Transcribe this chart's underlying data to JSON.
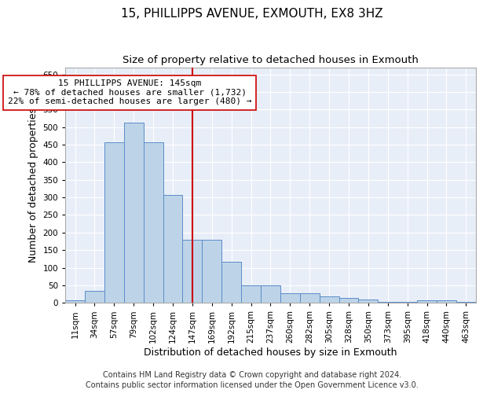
{
  "title": "15, PHILLIPPS AVENUE, EXMOUTH, EX8 3HZ",
  "subtitle": "Size of property relative to detached houses in Exmouth",
  "xlabel": "Distribution of detached houses by size in Exmouth",
  "ylabel": "Number of detached properties",
  "categories": [
    "11sqm",
    "34sqm",
    "57sqm",
    "79sqm",
    "102sqm",
    "124sqm",
    "147sqm",
    "169sqm",
    "192sqm",
    "215sqm",
    "237sqm",
    "260sqm",
    "282sqm",
    "305sqm",
    "328sqm",
    "350sqm",
    "373sqm",
    "395sqm",
    "418sqm",
    "440sqm",
    "463sqm"
  ],
  "values": [
    7,
    35,
    457,
    512,
    457,
    307,
    180,
    180,
    117,
    50,
    50,
    27,
    27,
    18,
    13,
    9,
    2,
    2,
    7,
    7,
    4
  ],
  "bar_color": "#bdd4e8",
  "bar_edge_color": "#5b8cc8",
  "vline_x_index": 6,
  "vline_color": "#cc0000",
  "annotation_line1": "15 PHILLIPPS AVENUE: 145sqm",
  "annotation_line2": "← 78% of detached houses are smaller (1,732)",
  "annotation_line3": "22% of semi-detached houses are larger (480) →",
  "annotation_box_color": "#ffffff",
  "annotation_box_edge_color": "#cc0000",
  "ylim": [
    0,
    670
  ],
  "yticks": [
    0,
    50,
    100,
    150,
    200,
    250,
    300,
    350,
    400,
    450,
    500,
    550,
    600,
    650
  ],
  "footer1": "Contains HM Land Registry data © Crown copyright and database right 2024.",
  "footer2": "Contains public sector information licensed under the Open Government Licence v3.0.",
  "title_fontsize": 11,
  "subtitle_fontsize": 9.5,
  "axis_label_fontsize": 9,
  "tick_fontsize": 7.5,
  "annotation_fontsize": 8,
  "footer_fontsize": 7,
  "bg_color": "#e8eef8"
}
